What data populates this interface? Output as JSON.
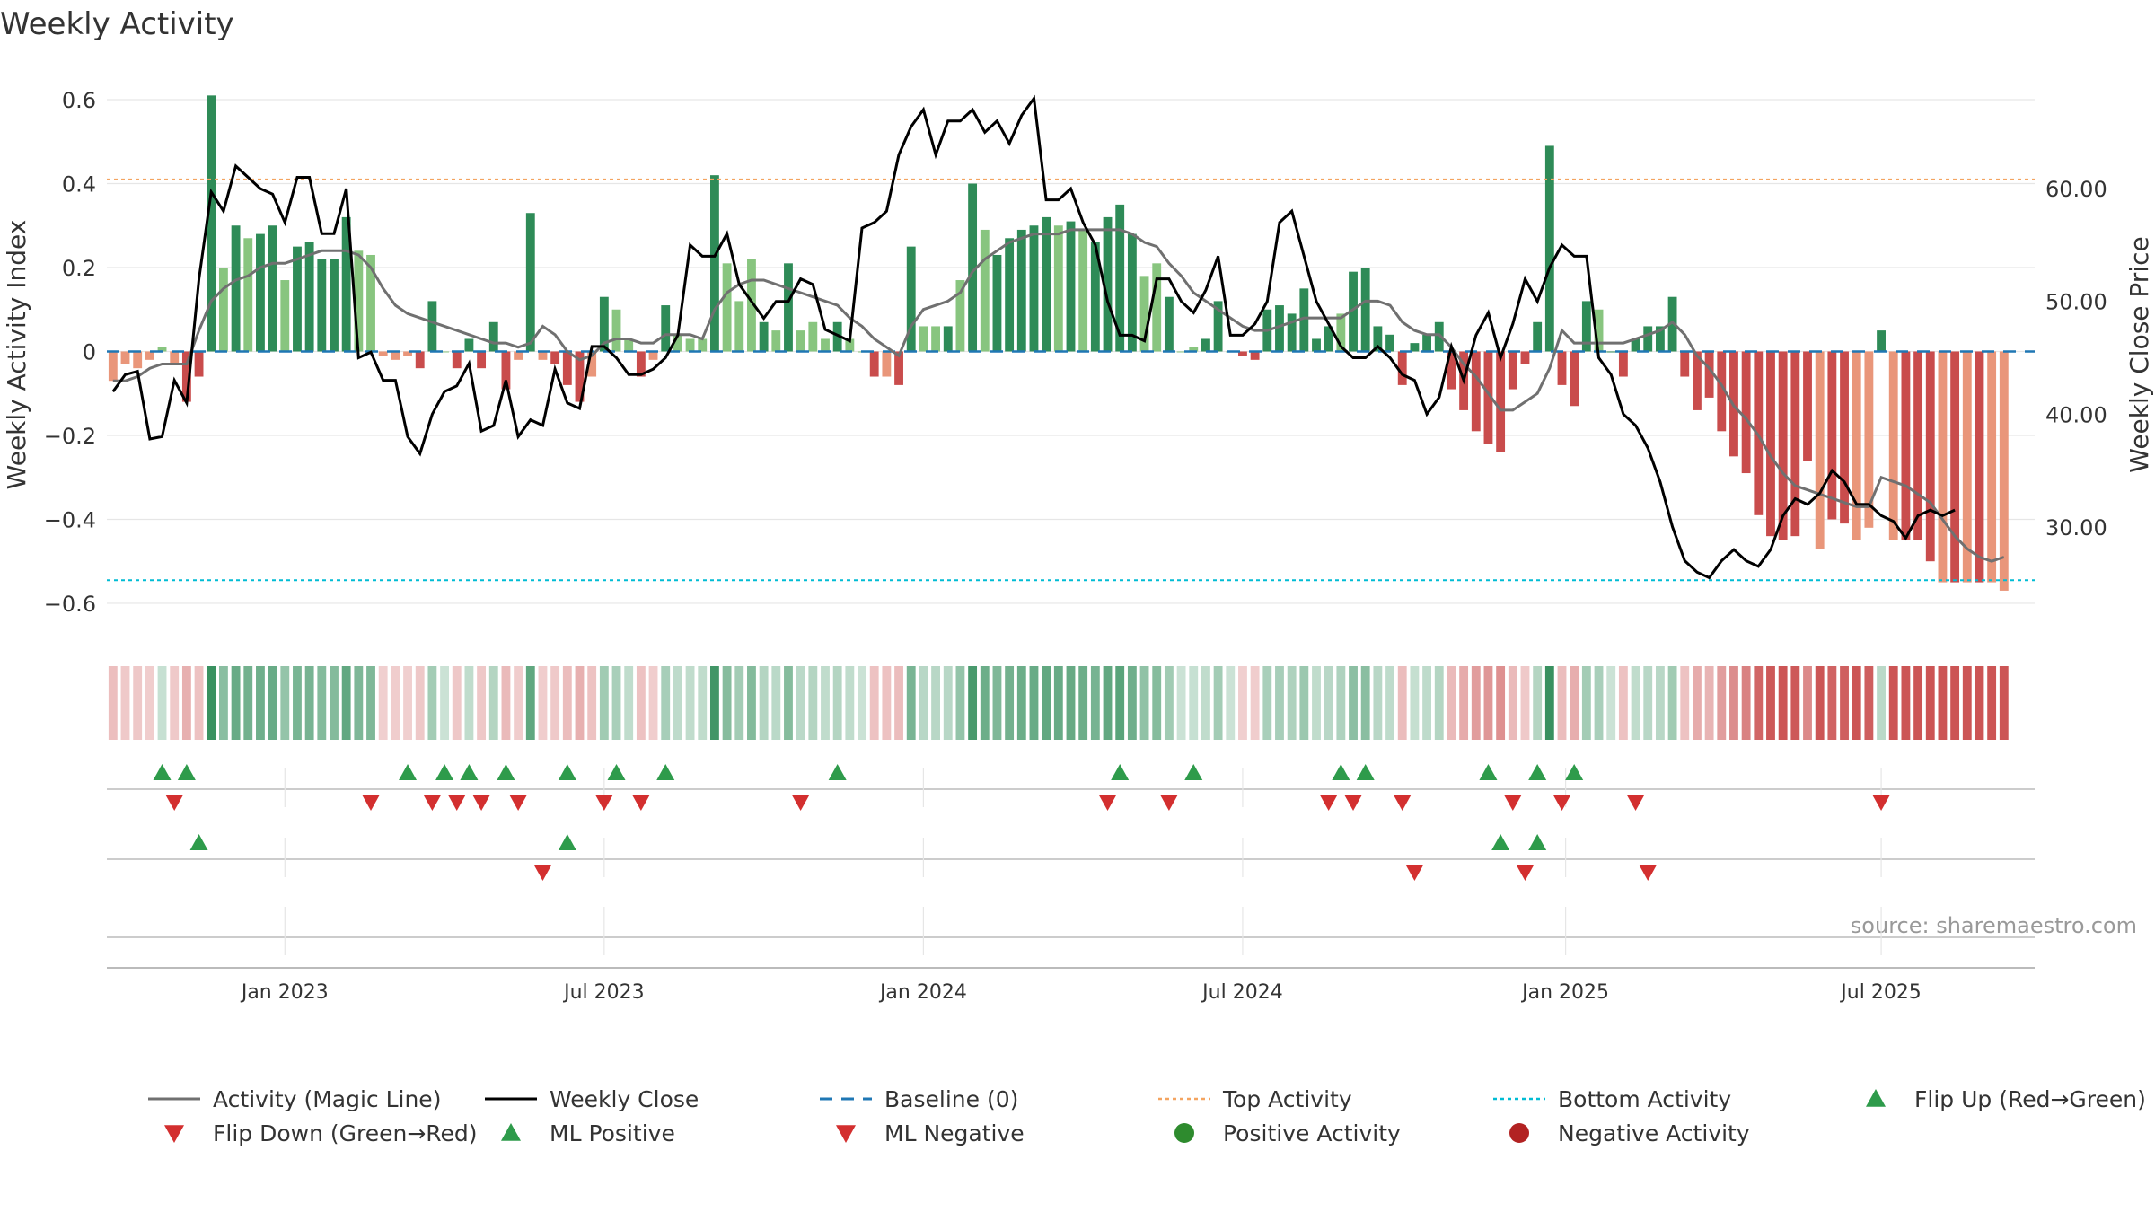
{
  "chart_data": {
    "type": "bar",
    "title": "Weekly Activity",
    "ylabel": "Weekly Activity Index",
    "y2label": "Weekly Close Price",
    "ylim": [
      -0.66,
      0.63
    ],
    "y2lim": [
      21.0,
      69.0
    ],
    "y_ticks": [
      {
        "v": 0.6,
        "label": "0.6"
      },
      {
        "v": 0.4,
        "label": "0.4"
      },
      {
        "v": 0.2,
        "label": "0.2"
      },
      {
        "v": 0,
        "label": "0"
      },
      {
        "v": -0.2,
        "label": "−0.2"
      },
      {
        "v": -0.4,
        "label": "−0.4"
      },
      {
        "v": -0.6,
        "label": "−0.6"
      }
    ],
    "y2_ticks": [
      {
        "v": 60,
        "label": "60.00"
      },
      {
        "v": 50,
        "label": "50.00"
      },
      {
        "v": 40,
        "label": "40.00"
      },
      {
        "v": 30,
        "label": "30.00"
      }
    ],
    "x_ticks": [
      {
        "week": 14.5,
        "label": "Jan 2023"
      },
      {
        "week": 40.5,
        "label": "Jul 2023"
      },
      {
        "week": 66.5,
        "label": "Jan 2024"
      },
      {
        "week": 92.5,
        "label": "Jul 2024"
      },
      {
        "week": 118.8,
        "label": "Jan 2025"
      },
      {
        "week": 144.5,
        "label": "Jul 2025"
      }
    ],
    "top_activity": 0.41,
    "bottom_activity": -0.545,
    "weeks": 157,
    "activity": [
      -0.07,
      -0.03,
      -0.04,
      -0.02,
      0.01,
      -0.03,
      -0.12,
      -0.06,
      0.61,
      0.2,
      0.3,
      0.27,
      0.28,
      0.3,
      0.17,
      0.25,
      0.26,
      0.22,
      0.22,
      0.32,
      0.24,
      0.23,
      -0.01,
      -0.02,
      -0.01,
      -0.04,
      0.12,
      0.0,
      -0.04,
      0.03,
      -0.04,
      0.07,
      -0.09,
      -0.02,
      0.33,
      -0.02,
      -0.03,
      -0.08,
      -0.12,
      -0.06,
      0.13,
      0.1,
      0.03,
      -0.06,
      -0.02,
      0.11,
      0.04,
      0.03,
      0.03,
      0.42,
      0.21,
      0.12,
      0.22,
      0.07,
      0.05,
      0.21,
      0.05,
      0.07,
      0.03,
      0.07,
      0.03,
      0.0,
      -0.06,
      -0.06,
      -0.08,
      0.25,
      0.06,
      0.06,
      0.06,
      0.17,
      0.4,
      0.29,
      0.23,
      0.27,
      0.29,
      0.3,
      0.32,
      0.3,
      0.31,
      0.29,
      0.26,
      0.32,
      0.35,
      0.28,
      0.18,
      0.21,
      0.13,
      0.0,
      0.01,
      0.03,
      0.12,
      0.0,
      -0.01,
      -0.02,
      0.1,
      0.11,
      0.09,
      0.15,
      0.03,
      0.06,
      0.09,
      0.19,
      0.2,
      0.06,
      0.04,
      -0.08,
      0.02,
      0.04,
      0.07,
      -0.09,
      -0.14,
      -0.19,
      -0.22,
      -0.24,
      -0.09,
      -0.03,
      0.07,
      0.49,
      -0.08,
      -0.13,
      0.12,
      0.1,
      0.0,
      -0.06,
      0.03,
      0.06,
      0.06,
      0.13,
      -0.06,
      -0.14,
      -0.11,
      -0.19,
      -0.25,
      -0.29,
      -0.39,
      -0.44,
      -0.45,
      -0.44,
      -0.26,
      -0.47,
      -0.4,
      -0.41,
      -0.45,
      -0.42,
      0.05,
      -0.45,
      -0.45,
      -0.45,
      -0.5,
      -0.55,
      -0.55,
      -0.55,
      -0.55,
      -0.55,
      -0.57
    ],
    "activity_fill": [
      0.5,
      0.5,
      0.5,
      0.5,
      0.5,
      0.5,
      1.0,
      1.0,
      1.0,
      0.5,
      1.0,
      0.5,
      1.0,
      1.0,
      0.5,
      1.0,
      1.0,
      1.0,
      1.0,
      1.0,
      0.5,
      0.5,
      0.5,
      0.5,
      0.5,
      1.0,
      1.0,
      0.5,
      1.0,
      1.0,
      1.0,
      1.0,
      1.0,
      0.5,
      1.0,
      0.5,
      1.0,
      1.0,
      1.0,
      0.5,
      1.0,
      0.5,
      0.5,
      1.0,
      0.5,
      1.0,
      0.5,
      0.5,
      0.5,
      1.0,
      0.5,
      0.5,
      0.5,
      1.0,
      0.5,
      1.0,
      0.5,
      0.5,
      0.5,
      1.0,
      0.5,
      0.5,
      1.0,
      0.5,
      1.0,
      1.0,
      0.5,
      0.5,
      1.0,
      0.5,
      1.0,
      0.5,
      1.0,
      1.0,
      1.0,
      1.0,
      1.0,
      0.5,
      1.0,
      0.5,
      1.0,
      1.0,
      1.0,
      1.0,
      0.5,
      0.5,
      1.0,
      0.5,
      0.5,
      1.0,
      1.0,
      0.5,
      1.0,
      1.0,
      1.0,
      1.0,
      1.0,
      1.0,
      1.0,
      1.0,
      0.5,
      1.0,
      1.0,
      1.0,
      1.0,
      1.0,
      1.0,
      1.0,
      1.0,
      1.0,
      1.0,
      1.0,
      1.0,
      1.0,
      1.0,
      1.0,
      1.0,
      1.0,
      1.0,
      1.0,
      1.0,
      0.5,
      1.0,
      1.0,
      1.0,
      1.0,
      1.0,
      1.0,
      1.0,
      1.0,
      1.0,
      1.0,
      1.0,
      1.0,
      1.0,
      1.0,
      1.0,
      1.0,
      1.0,
      0.5,
      1.0,
      1.0,
      0.5,
      0.5,
      1.0,
      0.5,
      1.0,
      1.0,
      1.0,
      0.5,
      1.0,
      0.5,
      1.0,
      0.5,
      0.5,
      0.5,
      0.5
    ],
    "magic_line": [
      -0.07,
      -0.07,
      -0.06,
      -0.04,
      -0.03,
      -0.03,
      -0.03,
      0.05,
      0.12,
      0.15,
      0.17,
      0.18,
      0.2,
      0.21,
      0.21,
      0.22,
      0.23,
      0.24,
      0.24,
      0.24,
      0.23,
      0.2,
      0.15,
      0.11,
      0.09,
      0.08,
      0.07,
      0.06,
      0.05,
      0.04,
      0.03,
      0.02,
      0.02,
      0.01,
      0.02,
      0.06,
      0.04,
      0.0,
      -0.02,
      -0.01,
      0.02,
      0.03,
      0.03,
      0.02,
      0.02,
      0.04,
      0.04,
      0.04,
      0.03,
      0.1,
      0.14,
      0.16,
      0.17,
      0.17,
      0.16,
      0.15,
      0.14,
      0.13,
      0.12,
      0.11,
      0.08,
      0.06,
      0.03,
      0.01,
      -0.01,
      0.06,
      0.1,
      0.11,
      0.12,
      0.14,
      0.19,
      0.22,
      0.24,
      0.26,
      0.27,
      0.28,
      0.28,
      0.28,
      0.29,
      0.29,
      0.29,
      0.29,
      0.29,
      0.28,
      0.26,
      0.25,
      0.21,
      0.18,
      0.14,
      0.12,
      0.1,
      0.08,
      0.06,
      0.05,
      0.05,
      0.06,
      0.07,
      0.08,
      0.08,
      0.08,
      0.08,
      0.1,
      0.12,
      0.12,
      0.11,
      0.07,
      0.05,
      0.04,
      0.04,
      0.01,
      -0.03,
      -0.06,
      -0.1,
      -0.14,
      -0.14,
      -0.12,
      -0.1,
      -0.04,
      0.05,
      0.02,
      0.02,
      0.02,
      0.02,
      0.02,
      0.03,
      0.04,
      0.05,
      0.07,
      0.04,
      -0.01,
      -0.04,
      -0.08,
      -0.13,
      -0.16,
      -0.2,
      -0.25,
      -0.29,
      -0.32,
      -0.33,
      -0.34,
      -0.35,
      -0.36,
      -0.37,
      -0.37,
      -0.3,
      -0.31,
      -0.32,
      -0.34,
      -0.36,
      -0.4,
      -0.44,
      -0.47,
      -0.49,
      -0.5,
      -0.49
    ],
    "weekly_close": [
      42.0,
      43.5,
      43.8,
      37.8,
      38.0,
      43.0,
      41.0,
      52.0,
      59.7,
      58.0,
      62.0,
      61.0,
      60.0,
      59.5,
      57.0,
      61.0,
      61.0,
      56.0,
      56.0,
      60.0,
      45.0,
      45.5,
      43.0,
      43.0,
      38.0,
      36.5,
      40.0,
      42.0,
      42.5,
      44.5,
      38.5,
      39.0,
      43.0,
      38.0,
      39.5,
      39.0,
      44.0,
      41.0,
      40.5,
      46.0,
      46.0,
      45.0,
      43.5,
      43.5,
      44.0,
      45.0,
      47.0,
      55.0,
      54.0,
      54.0,
      56.0,
      51.5,
      50.0,
      48.5,
      50.0,
      50.0,
      52.0,
      51.5,
      47.5,
      47.0,
      46.5,
      56.5,
      57.0,
      58.0,
      63.0,
      65.5,
      67.0,
      63.0,
      66.0,
      66.0,
      67.0,
      65.0,
      66.0,
      64.0,
      66.5,
      68.0,
      59.0,
      59.0,
      60.0,
      57.0,
      55.0,
      50.0,
      47.0,
      47.0,
      46.5,
      52.0,
      52.0,
      50.0,
      49.0,
      51.0,
      54.0,
      47.0,
      47.0,
      48.0,
      50.0,
      57.0,
      58.0,
      54.0,
      50.0,
      48.0,
      46.0,
      45.0,
      45.0,
      46.0,
      45.0,
      43.5,
      43.0,
      40.0,
      41.5,
      46.0,
      43.0,
      47.0,
      49.0,
      45.0,
      48.0,
      52.0,
      50.0,
      53.0,
      55.0,
      54.0,
      54.0,
      45.0,
      43.5,
      40.0,
      39.0,
      37.0,
      34.0,
      30.0,
      27.0,
      26.0,
      25.5,
      27.0,
      28.0,
      27.0,
      26.5,
      28.0,
      31.0,
      32.5,
      32.0,
      33.0,
      35.0,
      34.0,
      32.0,
      32.0,
      31.0,
      30.5,
      29.0,
      31.0,
      31.5,
      31.0,
      31.5
    ],
    "flip_up": [
      4,
      6,
      24,
      27,
      29,
      32,
      37,
      41,
      45,
      59,
      82,
      88,
      100,
      102,
      112,
      116,
      119
    ],
    "flip_down": [
      5,
      21,
      26,
      28,
      30,
      33,
      40,
      43,
      56,
      81,
      86,
      99,
      101,
      105,
      114,
      118,
      124,
      144
    ],
    "ml_positive": [
      7,
      37,
      113,
      116
    ],
    "ml_negative": [
      35,
      106,
      115,
      125
    ],
    "source_label": "source: sharemaestro.com",
    "legend": [
      {
        "label": "Activity (Magic Line)",
        "kind": "line",
        "color": "#707070"
      },
      {
        "label": "Weekly Close",
        "kind": "line",
        "color": "#000000"
      },
      {
        "label": "Baseline (0)",
        "kind": "dashed",
        "color": "#1f77b4"
      },
      {
        "label": "Top Activity",
        "kind": "dotted",
        "color": "#f4a460"
      },
      {
        "label": "Bottom Activity",
        "kind": "dotted",
        "color": "#00bcd4"
      },
      {
        "label": "Flip Up (Red→Green)",
        "kind": "tri-up",
        "color": "#2e9b4b"
      },
      {
        "label": "Flip Down (Green→Red)",
        "kind": "tri-down",
        "color": "#d32f2f"
      },
      {
        "label": "ML Positive",
        "kind": "tri-up",
        "color": "#2e9b4b"
      },
      {
        "label": "ML Negative",
        "kind": "tri-down",
        "color": "#d32f2f"
      },
      {
        "label": "Positive Activity",
        "kind": "dot",
        "color": "#2e8b2e"
      },
      {
        "label": "Negative Activity",
        "kind": "dot",
        "color": "#b22222"
      }
    ],
    "colors": {
      "pos_strong": "#2e8b57",
      "pos_light": "#88c57f",
      "neg_strong": "#c94c4c",
      "neg_light": "#e9967a",
      "magic_line": "#707070",
      "close": "#000000",
      "baseline": "#1f77b4",
      "top": "#f4a460",
      "bottom": "#00bcd4",
      "up": "#2e9b4b",
      "down": "#d32f2f"
    }
  }
}
